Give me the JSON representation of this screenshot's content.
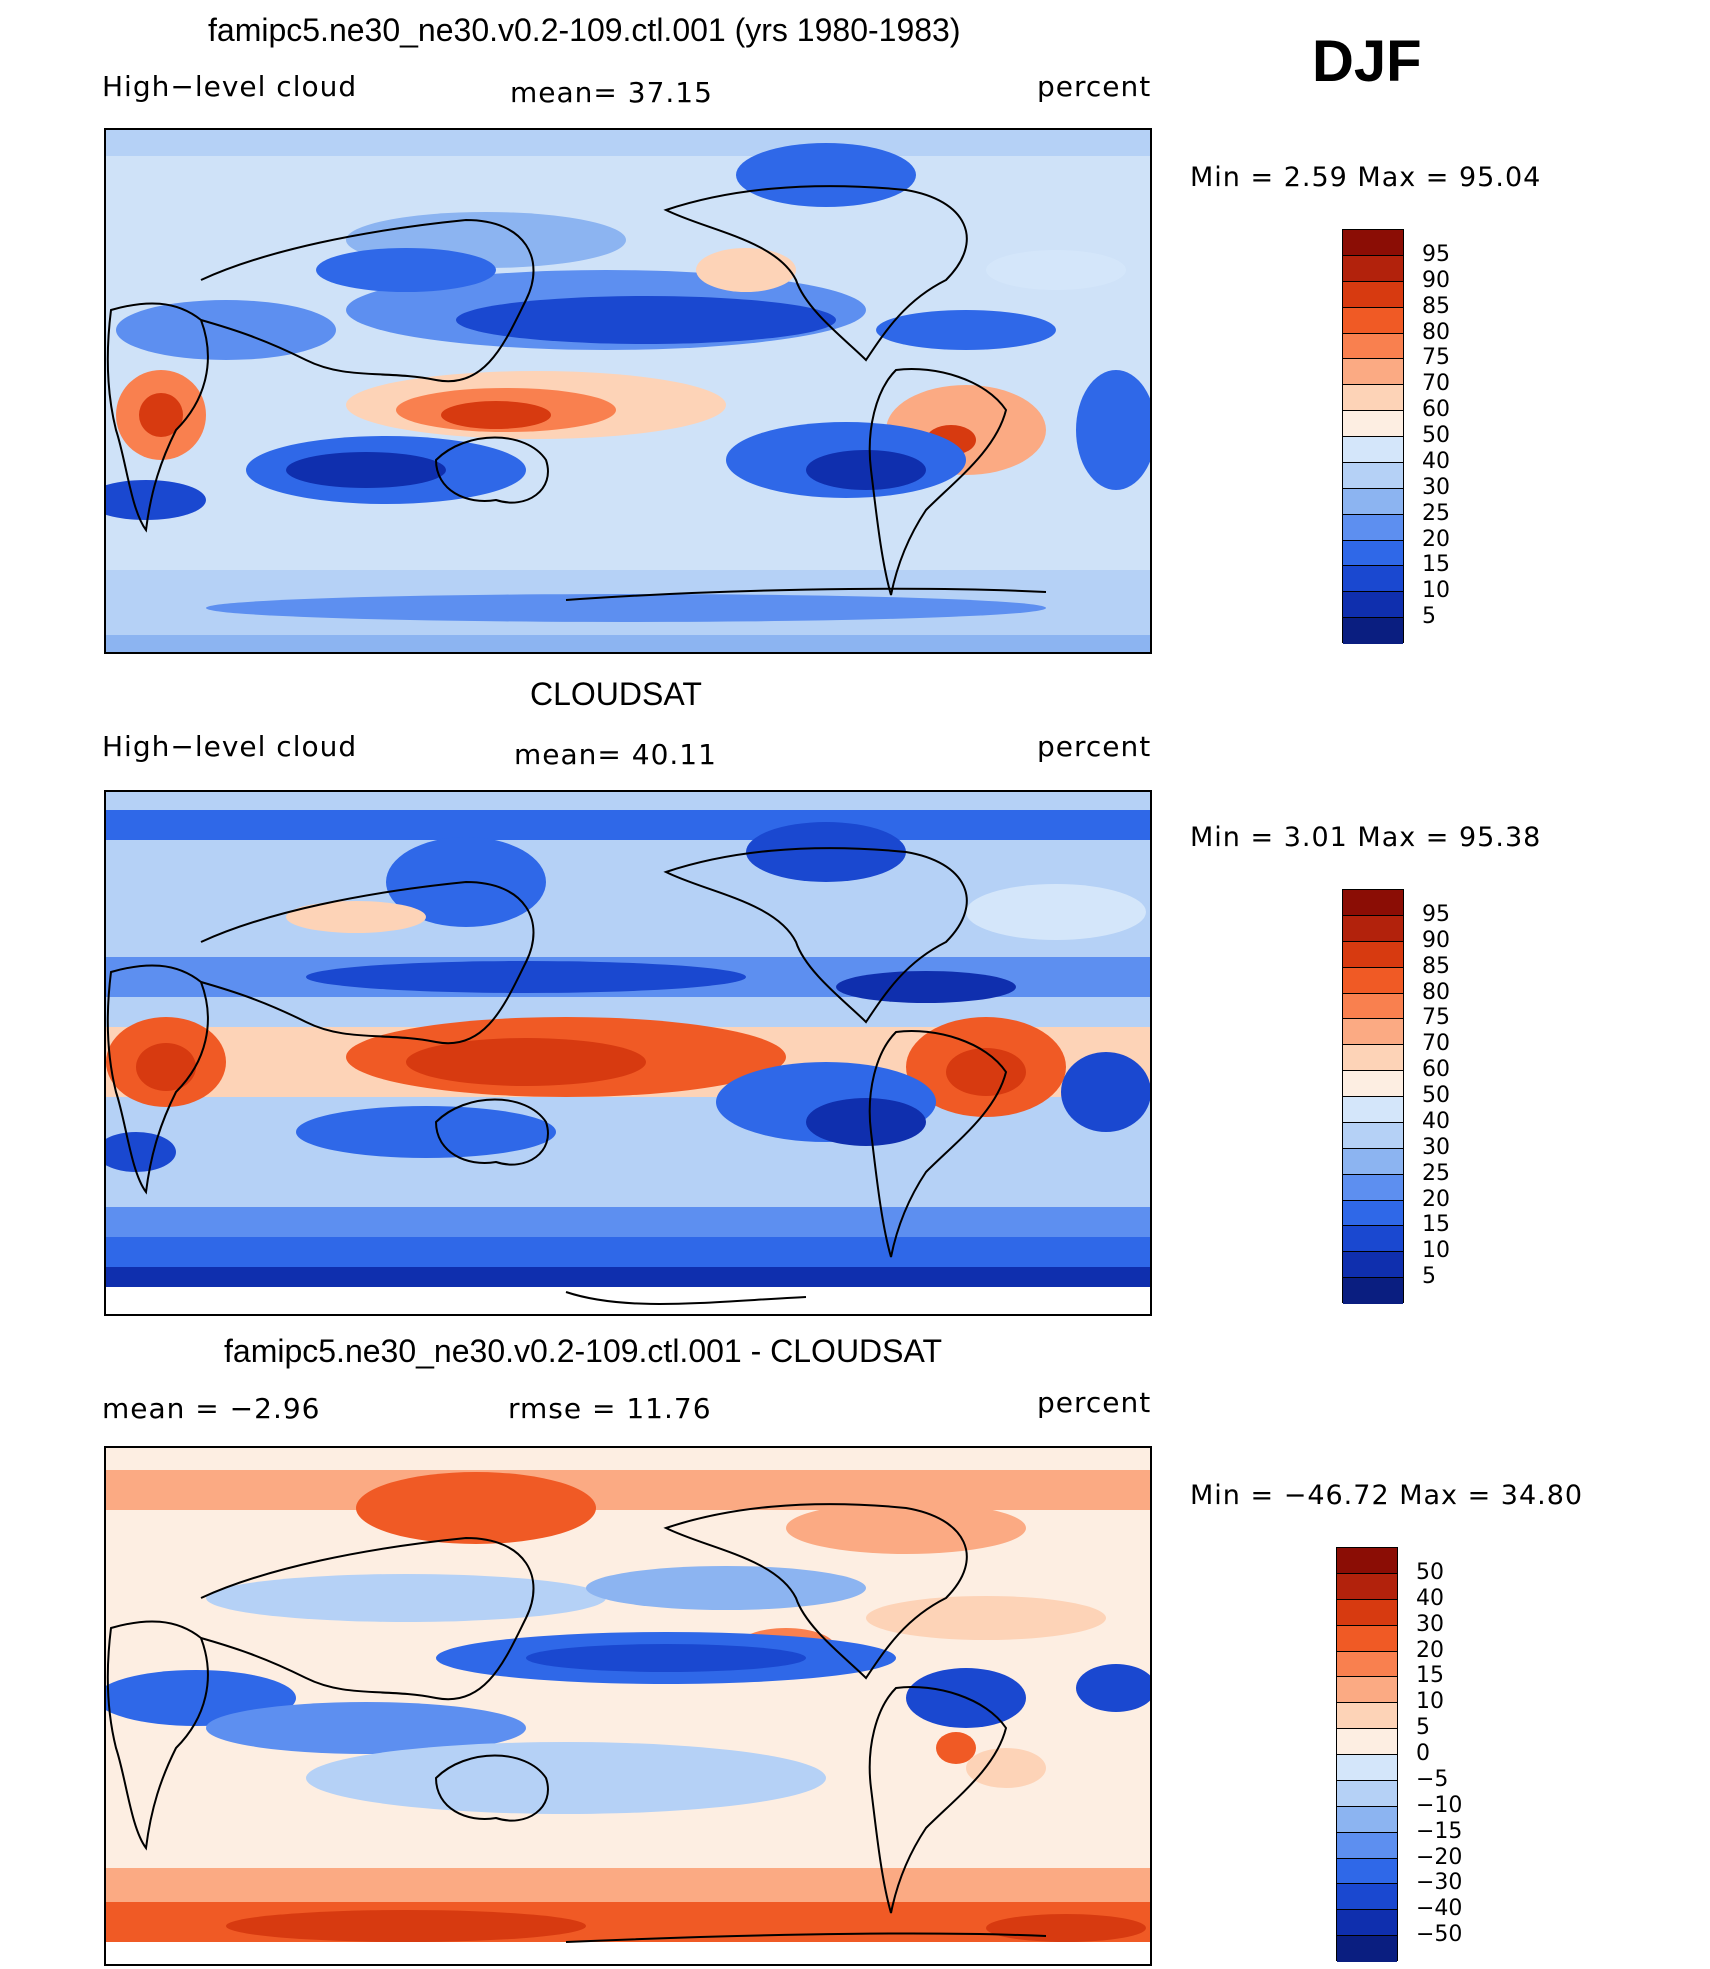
{
  "season": "DJF",
  "panels": [
    {
      "id": "model",
      "title": "famipc5.ne30_ne30.v0.2-109.ctl.001 (yrs 1980-1983)",
      "left_label": "High−level cloud",
      "center_label": "mean=   37.15",
      "right_label": "percent",
      "minmax": "Min  =     2.59  Max  =    95.04",
      "colorbar": {
        "labels": [
          "95",
          "90",
          "85",
          "80",
          "75",
          "70",
          "60",
          "50",
          "40",
          "30",
          "25",
          "20",
          "15",
          "10",
          "5"
        ],
        "colors": [
          "#8b0d05",
          "#b2220c",
          "#d73a10",
          "#f05a25",
          "#f9804f",
          "#fbaa83",
          "#fdd3b7",
          "#fdeee2",
          "#d4e6fa",
          "#b5d1f6",
          "#8cb4f1",
          "#5d8ff0",
          "#2f68e8",
          "#1a48d0",
          "#0f2fae",
          "#0a1e80"
        ]
      }
    },
    {
      "id": "obs",
      "title": "CLOUDSAT",
      "left_label": "High−level cloud",
      "center_label": "mean=   40.11",
      "right_label": "percent",
      "minmax": "Min  =     3.01  Max  =    95.38",
      "colorbar": {
        "labels": [
          "95",
          "90",
          "85",
          "80",
          "75",
          "70",
          "60",
          "50",
          "40",
          "30",
          "25",
          "20",
          "15",
          "10",
          "5"
        ],
        "colors": [
          "#8b0d05",
          "#b2220c",
          "#d73a10",
          "#f05a25",
          "#f9804f",
          "#fbaa83",
          "#fdd3b7",
          "#fdeee2",
          "#d4e6fa",
          "#b5d1f6",
          "#8cb4f1",
          "#5d8ff0",
          "#2f68e8",
          "#1a48d0",
          "#0f2fae",
          "#0a1e80"
        ]
      }
    },
    {
      "id": "diff",
      "title": "famipc5.ne30_ne30.v0.2-109.ctl.001 - CLOUDSAT",
      "left_label": "mean  =    −2.96",
      "center_label": "rmse  =    11.76",
      "right_label": "percent",
      "minmax": "Min  =  −46.72  Max  =    34.80",
      "colorbar": {
        "labels": [
          "50",
          "40",
          "30",
          "20",
          "15",
          "10",
          "5",
          "0",
          "−5",
          "−10",
          "−15",
          "−20",
          "−30",
          "−40",
          "−50"
        ],
        "colors": [
          "#8b0d05",
          "#b2220c",
          "#d73a10",
          "#f05a25",
          "#f9804f",
          "#fbaa83",
          "#fdd3b7",
          "#fdeee2",
          "#d4e6fa",
          "#b5d1f6",
          "#8cb4f1",
          "#5d8ff0",
          "#2f68e8",
          "#1a48d0",
          "#0f2fae",
          "#0a1e80"
        ]
      }
    }
  ]
}
